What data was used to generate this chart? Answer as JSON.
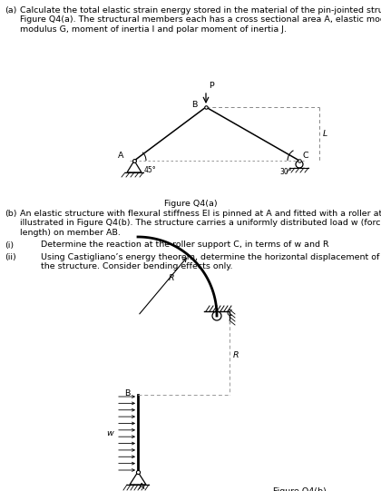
{
  "fig_width": 4.2,
  "fig_height": 5.41,
  "dpi": 100,
  "fs_main": 6.8,
  "fs_small": 6.0,
  "lines_a": [
    "Calculate the total elastic strain energy stored in the material of the pin-jointed structure shown in",
    "Figure Q4(a). The structural members each has a cross sectional area A, elastic modulus E, shear",
    "modulus G, moment of inertia I and polar moment of inertia J."
  ],
  "lines_b": [
    "An elastic structure with flexural stiffness EI is pinned at A and fitted with a roller at end C, as",
    "illustrated in Figure Q4(b). The structure carries a uniformly distributed load w (force per unit",
    "length) on member AB."
  ],
  "text_i": "Determine the reaction at the roller support C, in terms of w and R",
  "text_ii_1": "Using Castigliano’s energy theorem, determine the horizontal displacement of end C of",
  "text_ii_2": "the structure. Consider bending effects only.",
  "fig_a_caption": "Figure Q4(a)",
  "fig_b_caption": "Figure Q4(b)",
  "label_a": "(a)",
  "label_b": "(b)",
  "label_i": "(i)",
  "label_ii": "(ii)"
}
